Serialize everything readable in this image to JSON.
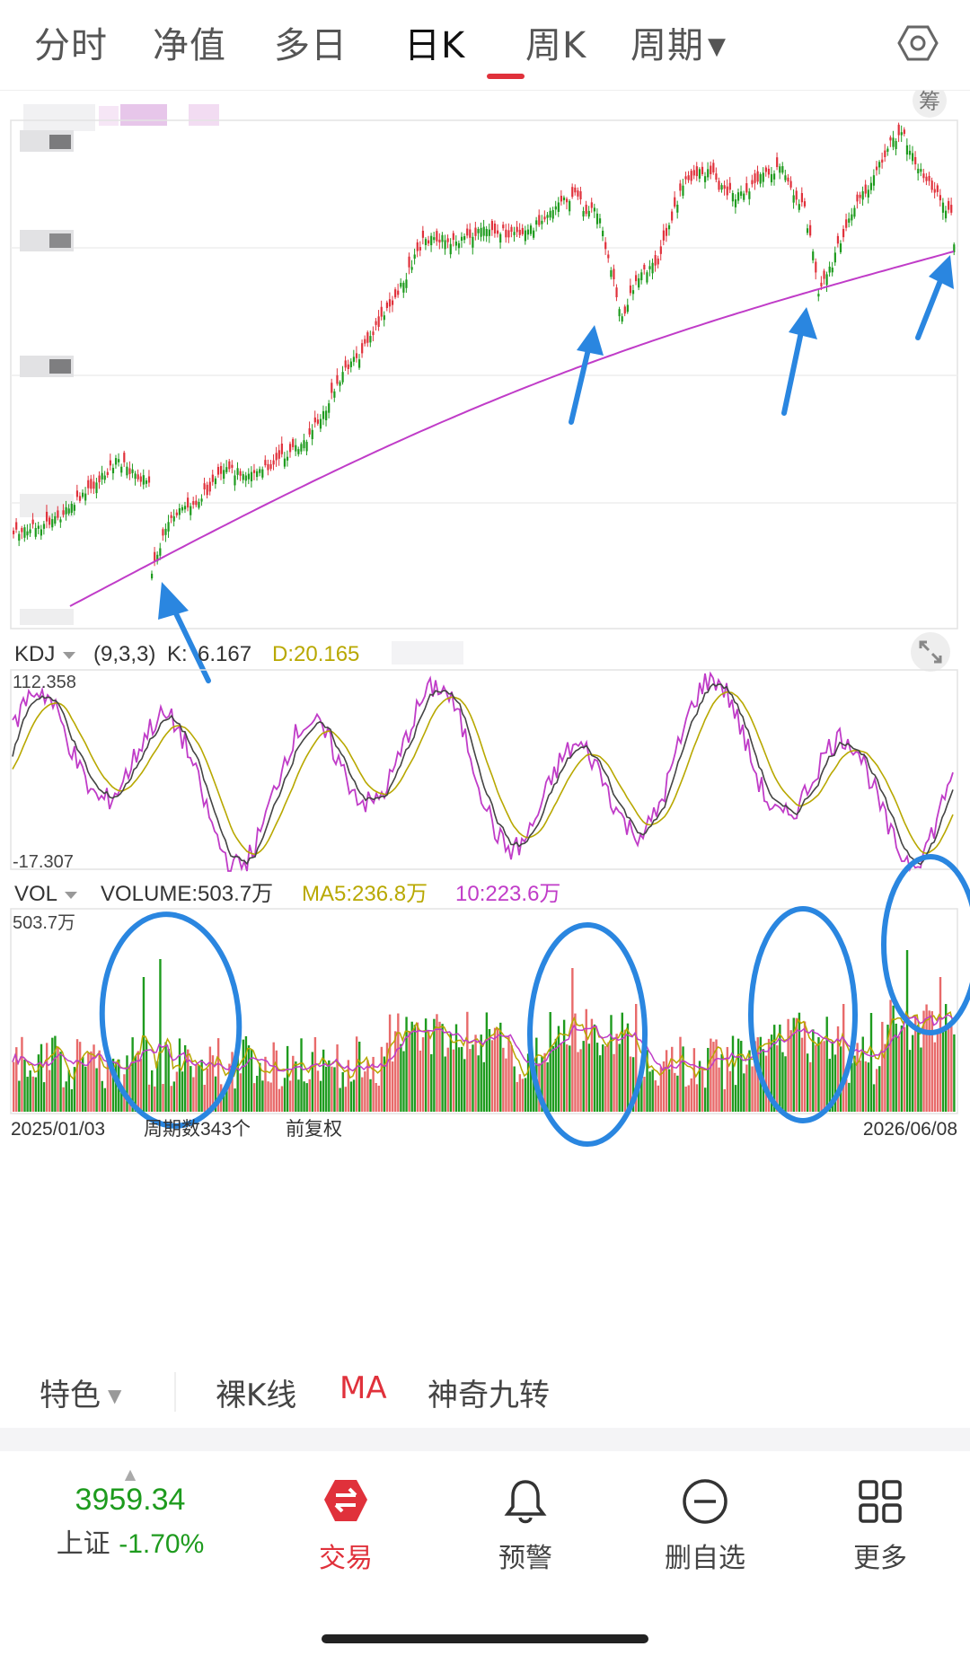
{
  "tabs": [
    {
      "label": "分时"
    },
    {
      "label": "净值"
    },
    {
      "label": "多日"
    },
    {
      "label": "日K",
      "active": true
    },
    {
      "label": "周K"
    },
    {
      "label": "周期"
    }
  ],
  "chip_button": "筹",
  "kdj": {
    "indicator": "KDJ",
    "params": "(9,3,3)",
    "k_label": "K:",
    "k_value": "6.167",
    "d_label": "D:20.165",
    "y_max": "112.358",
    "y_min": "-17.307"
  },
  "vol": {
    "indicator": "VOL",
    "volume": "VOLUME:503.7万",
    "ma5": "MA5:236.8万",
    "ma10": "10:223.6万",
    "y_max": "503.7万"
  },
  "footer_axis": {
    "start_date": "2025/01/03",
    "periods": "周期数343个",
    "adjust": "前复权",
    "end_date": "2026/06/08"
  },
  "feature_bar": {
    "special": "特色",
    "naked_k": "裸K线",
    "ma": "MA",
    "nine_turn": "神奇九转"
  },
  "index": {
    "value": "3959.34",
    "name": "上证",
    "change": "-1.70%"
  },
  "bottom_nav": {
    "trade": "交易",
    "alert": "预警",
    "remove_watch": "删自选",
    "more": "更多"
  },
  "colors": {
    "up": "#e0313b",
    "down": "#1e9b1e",
    "ma_line": "#c03cc8",
    "kdj_k": "#444444",
    "kdj_d": "#b8a800",
    "kdj_j": "#c03cc8",
    "annotation": "#2a86e0",
    "accent": "#e0313b"
  }
}
